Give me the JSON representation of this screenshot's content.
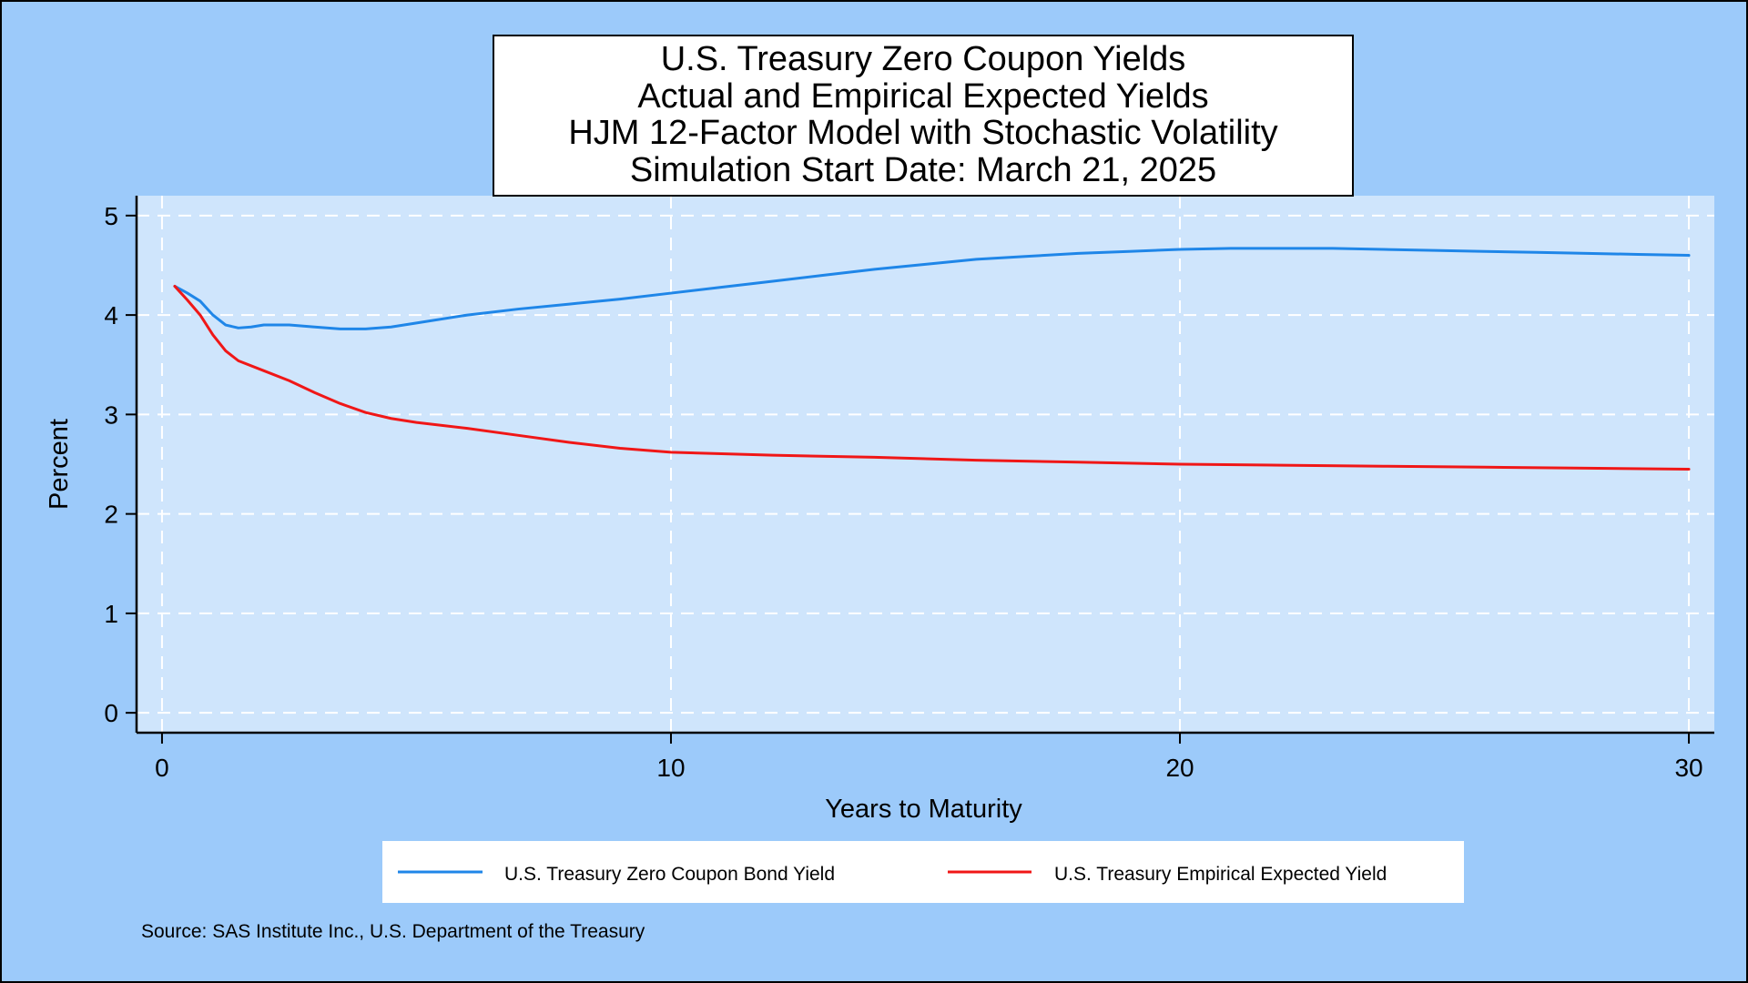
{
  "colors": {
    "outer_background": "#9ccafa",
    "plot_background": "#cfe5fc",
    "gridline": "#ffffff",
    "series_blue": "#1f86e8",
    "series_red": "#f01717",
    "title_box_fill": "#ffffff",
    "legend_fill": "#ffffff",
    "text": "#000000"
  },
  "chart_data": {
    "type": "line",
    "title_lines": [
      "U.S. Treasury Zero Coupon Yields",
      "Actual and Empirical Expected Yields",
      "HJM 12-Factor Model with Stochastic Volatility",
      "Simulation Start Date: March 21, 2025"
    ],
    "xlabel": "Years to Maturity",
    "ylabel": "Percent",
    "xlim": [
      -0.5,
      30.5
    ],
    "ylim": [
      -0.2,
      5.2
    ],
    "xticks": [
      0,
      10,
      20,
      30
    ],
    "yticks": [
      0,
      1,
      2,
      3,
      4,
      5
    ],
    "grid": true,
    "legend_position": "bottom",
    "source": "Source: SAS Institute Inc., U.S. Department of the Treasury",
    "series": [
      {
        "name": "U.S. Treasury Zero Coupon Bond Yield",
        "color_key": "series_blue",
        "points": [
          [
            0.25,
            4.29
          ],
          [
            0.5,
            4.22
          ],
          [
            0.75,
            4.14
          ],
          [
            1.0,
            4.0
          ],
          [
            1.25,
            3.9
          ],
          [
            1.5,
            3.87
          ],
          [
            1.75,
            3.88
          ],
          [
            2.0,
            3.9
          ],
          [
            2.5,
            3.9
          ],
          [
            3.0,
            3.88
          ],
          [
            3.5,
            3.86
          ],
          [
            4.0,
            3.86
          ],
          [
            4.5,
            3.88
          ],
          [
            5.0,
            3.92
          ],
          [
            6.0,
            4.0
          ],
          [
            7.0,
            4.06
          ],
          [
            8.0,
            4.11
          ],
          [
            9.0,
            4.16
          ],
          [
            10.0,
            4.22
          ],
          [
            11.0,
            4.28
          ],
          [
            12.0,
            4.34
          ],
          [
            13.0,
            4.4
          ],
          [
            14.0,
            4.46
          ],
          [
            15.0,
            4.51
          ],
          [
            16.0,
            4.56
          ],
          [
            17.0,
            4.59
          ],
          [
            18.0,
            4.62
          ],
          [
            19.0,
            4.64
          ],
          [
            20.0,
            4.66
          ],
          [
            21.0,
            4.67
          ],
          [
            22.0,
            4.67
          ],
          [
            23.0,
            4.67
          ],
          [
            24.0,
            4.66
          ],
          [
            25.0,
            4.65
          ],
          [
            26.0,
            4.64
          ],
          [
            27.0,
            4.63
          ],
          [
            28.0,
            4.62
          ],
          [
            29.0,
            4.61
          ],
          [
            30.0,
            4.6
          ]
        ]
      },
      {
        "name": "U.S. Treasury Empirical Expected Yield",
        "color_key": "series_red",
        "points": [
          [
            0.25,
            4.29
          ],
          [
            0.5,
            4.15
          ],
          [
            0.75,
            4.0
          ],
          [
            1.0,
            3.8
          ],
          [
            1.25,
            3.64
          ],
          [
            1.5,
            3.54
          ],
          [
            2.0,
            3.44
          ],
          [
            2.5,
            3.34
          ],
          [
            3.0,
            3.22
          ],
          [
            3.5,
            3.11
          ],
          [
            4.0,
            3.02
          ],
          [
            4.5,
            2.96
          ],
          [
            5.0,
            2.92
          ],
          [
            6.0,
            2.86
          ],
          [
            7.0,
            2.79
          ],
          [
            8.0,
            2.72
          ],
          [
            9.0,
            2.66
          ],
          [
            10.0,
            2.62
          ],
          [
            12.0,
            2.59
          ],
          [
            14.0,
            2.57
          ],
          [
            16.0,
            2.54
          ],
          [
            18.0,
            2.52
          ],
          [
            20.0,
            2.5
          ],
          [
            22.0,
            2.49
          ],
          [
            24.0,
            2.48
          ],
          [
            26.0,
            2.47
          ],
          [
            28.0,
            2.46
          ],
          [
            30.0,
            2.45
          ]
        ]
      }
    ]
  }
}
